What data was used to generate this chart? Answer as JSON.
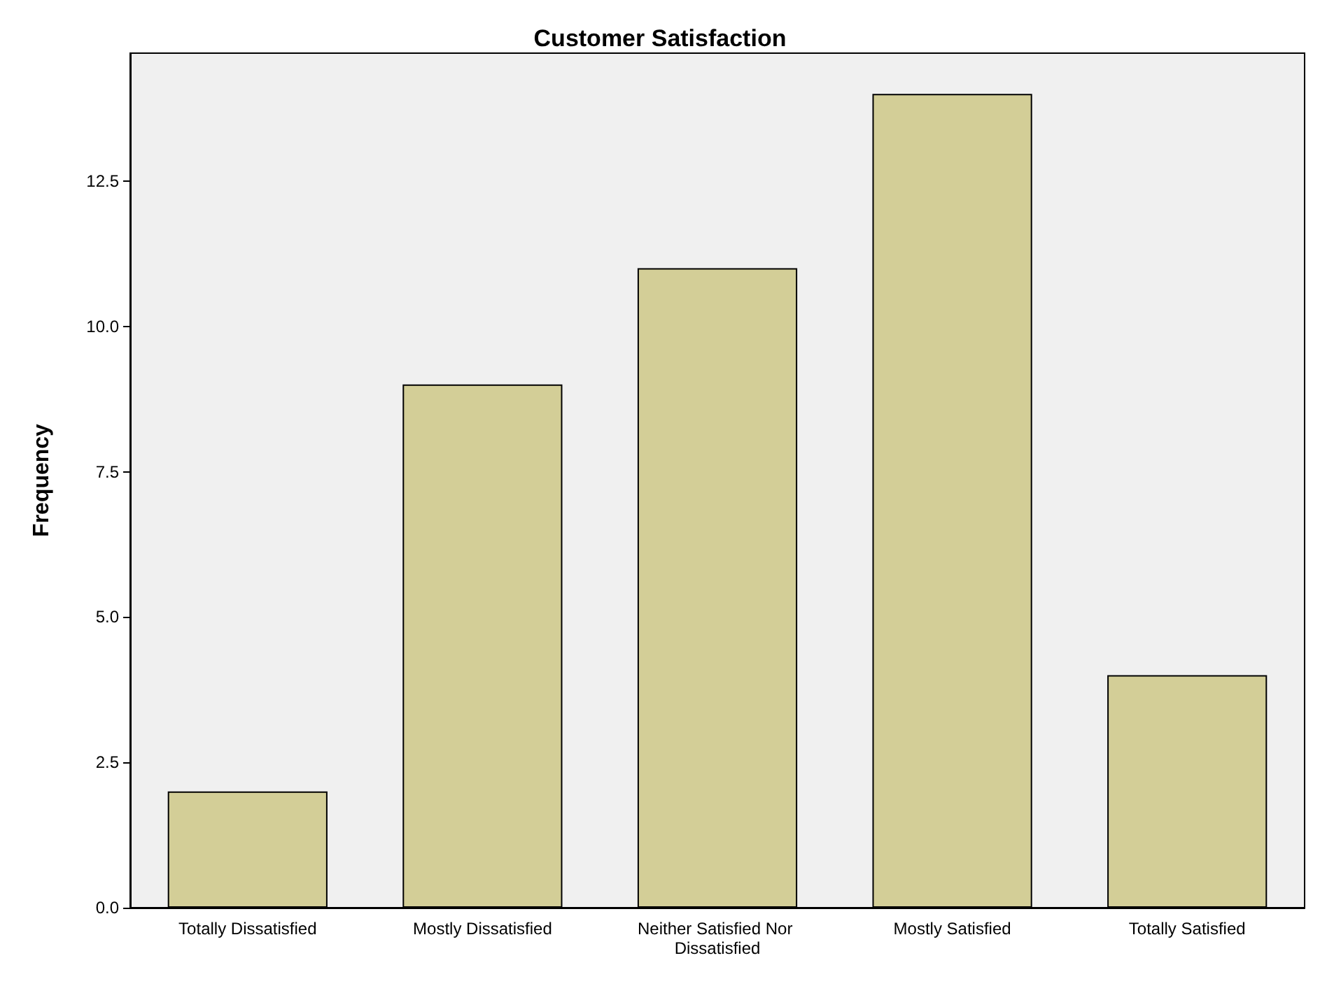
{
  "chart_data": {
    "type": "bar",
    "title": "Customer Satisfaction",
    "ylabel": "Frequency",
    "categories": [
      "Totally Dissatisfied",
      "Mostly Dissatisfied",
      "Neither Satisfied Nor Dissatisfied",
      "Mostly Satisfied",
      "Totally Satisfied"
    ],
    "values": [
      2,
      9,
      11,
      14,
      4
    ],
    "color": "#d3ce97",
    "ylim": [
      0,
      14.7
    ],
    "yticks": [
      {
        "value": 0,
        "label": "0.0"
      },
      {
        "value": 2.5,
        "label": "2.5"
      },
      {
        "value": 5,
        "label": "5.0"
      },
      {
        "value": 7.5,
        "label": "7.5"
      },
      {
        "value": 10,
        "label": "10.0"
      },
      {
        "value": 12.5,
        "label": "12.5"
      }
    ],
    "grid": false
  }
}
